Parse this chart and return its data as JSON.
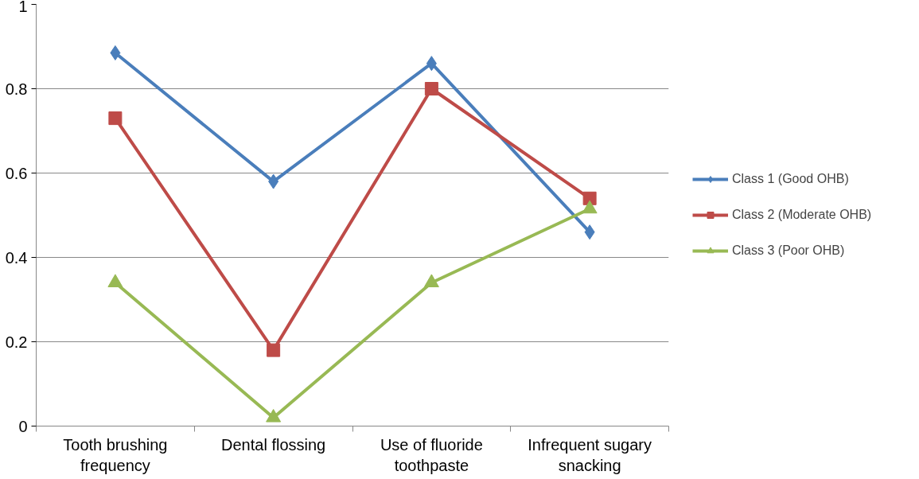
{
  "chart_data": {
    "type": "line",
    "categories": [
      "Tooth brushing frequency",
      "Dental flossing",
      "Use of fluoride toothpaste",
      "Infrequent sugary snacking"
    ],
    "series": [
      {
        "name": "Class 1 (Good OHB)",
        "color": "#4a7ebb",
        "marker": "diamond",
        "values": [
          0.885,
          0.58,
          0.86,
          0.46
        ]
      },
      {
        "name": "Class 2 (Moderate OHB)",
        "color": "#be4b48",
        "marker": "square",
        "values": [
          0.73,
          0.18,
          0.8,
          0.54
        ]
      },
      {
        "name": "Class 3 (Poor OHB)",
        "color": "#98b954",
        "marker": "triangle",
        "values": [
          0.34,
          0.02,
          0.34,
          0.515
        ]
      }
    ],
    "ylim": [
      0,
      1
    ],
    "yticks": [
      0,
      0.2,
      0.4,
      0.6,
      0.8,
      1
    ],
    "grid": "y",
    "legend": "right",
    "line_style": "solid"
  }
}
